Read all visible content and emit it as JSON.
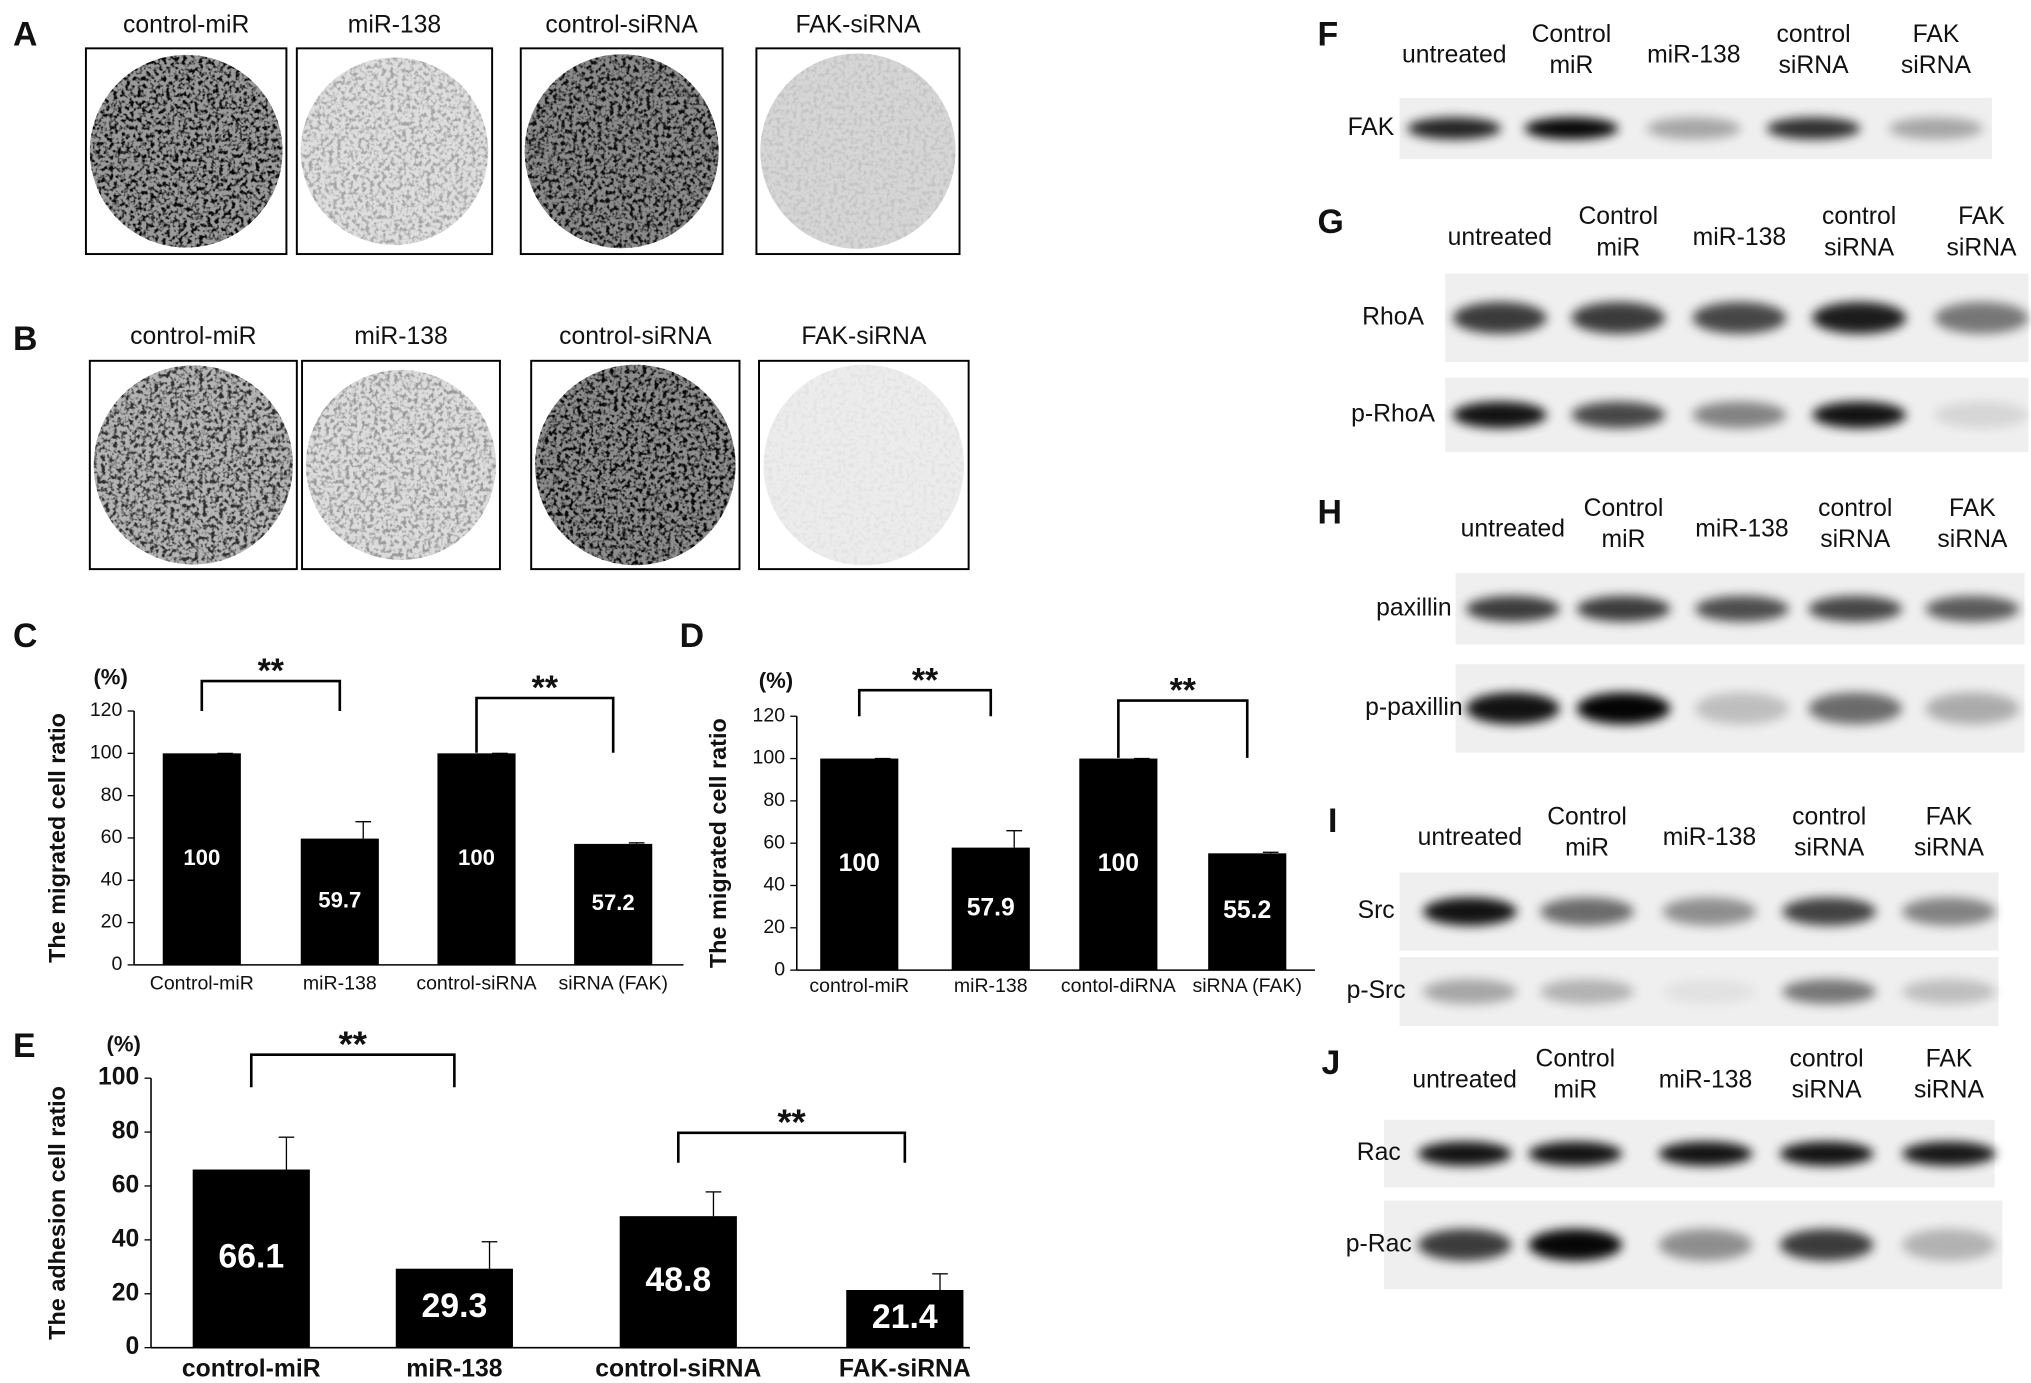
{
  "images": [
    {
      "label": "A",
      "titles": [
        "control-miR",
        "miR-138",
        "control-siRNA",
        "FAK-siRNA"
      ]
    },
    {
      "label": "B",
      "titles": [
        "control-miR",
        "miR-138",
        "control-siRNA",
        "FAK-siRNA"
      ]
    }
  ],
  "chart_data": [
    {
      "type": "bar",
      "label": "C",
      "unit": "(%)",
      "ylabel": "The migrated cell ratio",
      "categories": [
        "Control-miR",
        "miR-138",
        "control-siRNA",
        "siRNA (FAK)"
      ],
      "values": [
        100,
        59.7,
        100,
        57.2
      ],
      "errors": [
        0,
        8,
        0,
        0.5
      ],
      "color": "#000000",
      "ylim": [
        0,
        120
      ],
      "yticks": [
        0,
        20,
        40,
        60,
        80,
        100,
        120
      ],
      "annotations": [
        "**",
        "**"
      ]
    },
    {
      "type": "bar",
      "label": "D",
      "unit": "(%)",
      "ylabel": "The migrated cell ratio",
      "categories": [
        "control-miR",
        "miR-138",
        "contol-diRNA",
        "siRNA (FAK)"
      ],
      "values": [
        100,
        57.9,
        100,
        55.2
      ],
      "errors": [
        0,
        8,
        0,
        0.5
      ],
      "color": "#000000",
      "ylim": [
        0,
        120
      ],
      "yticks": [
        0,
        20,
        40,
        60,
        80,
        100,
        120
      ],
      "annotations": [
        "**",
        "**"
      ]
    },
    {
      "type": "bar",
      "label": "E",
      "unit": "(%)",
      "ylabel": "The adhesion cell ratio",
      "categories": [
        "control-miR",
        "miR-138",
        "control-siRNA",
        "FAK-siRNA"
      ],
      "values": [
        66.1,
        29.3,
        48.8,
        21.4
      ],
      "errors": [
        12,
        10,
        9,
        6
      ],
      "color": "#000000",
      "ylim": [
        0,
        100
      ],
      "yticks": [
        0,
        20,
        40,
        60,
        80,
        100
      ],
      "annotations": [
        "**",
        "**"
      ]
    }
  ],
  "blots": [
    {
      "label": "F",
      "lanes": [
        [
          "untreated"
        ],
        [
          "Control",
          "miR"
        ],
        [
          "miR-138"
        ],
        [
          "control",
          "siRNA"
        ],
        [
          "FAK",
          "siRNA"
        ]
      ],
      "rows": [
        "FAK"
      ]
    },
    {
      "label": "G",
      "lanes": [
        [
          "untreated"
        ],
        [
          "Control",
          "miR"
        ],
        [
          "miR-138"
        ],
        [
          "control",
          "siRNA"
        ],
        [
          "FAK",
          "siRNA"
        ]
      ],
      "rows": [
        "RhoA",
        "p-RhoA"
      ]
    },
    {
      "label": "H",
      "lanes": [
        [
          "untreated"
        ],
        [
          "Control",
          "miR"
        ],
        [
          "miR-138"
        ],
        [
          "control",
          "siRNA"
        ],
        [
          "FAK",
          "siRNA"
        ]
      ],
      "rows": [
        "paxillin",
        "p-paxillin"
      ]
    },
    {
      "label": "I",
      "lanes": [
        [
          "untreated"
        ],
        [
          "Control",
          "miR"
        ],
        [
          "miR-138"
        ],
        [
          "control",
          "siRNA"
        ],
        [
          "FAK",
          "siRNA"
        ]
      ],
      "rows": [
        "Src",
        "p-Src"
      ]
    },
    {
      "label": "J",
      "lanes": [
        [
          "untreated"
        ],
        [
          "Control",
          "miR"
        ],
        [
          "miR-138"
        ],
        [
          "control",
          "siRNA"
        ],
        [
          "FAK",
          "siRNA"
        ]
      ],
      "rows": [
        "Rac",
        "p-Rac"
      ]
    }
  ]
}
